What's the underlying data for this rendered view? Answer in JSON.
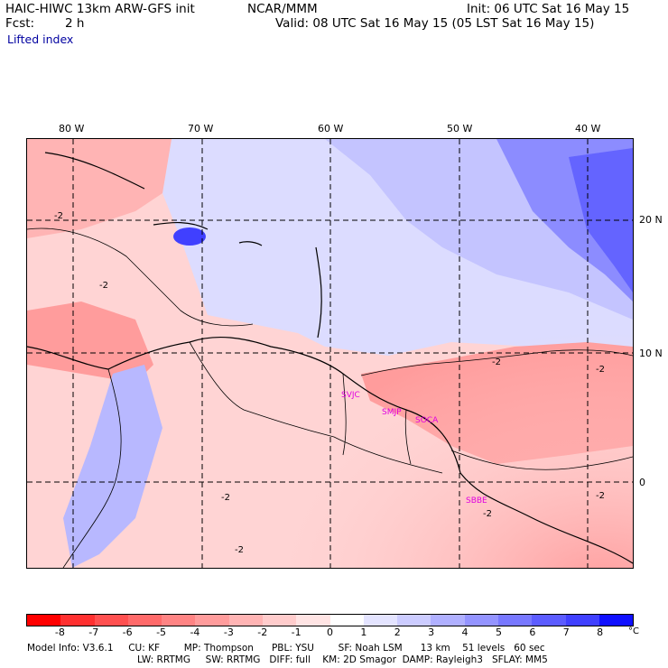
{
  "header": {
    "model": "HAIC-HIWC 13km ARW-GFS init",
    "org": "NCAR/MMM",
    "init": "Init: 06 UTC Sat 16 May 15",
    "fcst_label": "Fcst:",
    "fcst_value": "2 h",
    "valid": "Valid: 08 UTC Sat 16 May 15 (05 LST Sat 16 May 15)",
    "field": "Lifted index"
  },
  "map": {
    "lon_labels": [
      "80 W",
      "70 W",
      "60 W",
      "50 W",
      "40 W"
    ],
    "lat_labels": [
      "20 N",
      "10 N",
      "0"
    ],
    "contour_labels": [
      "-2"
    ],
    "stations": [
      "SVJC",
      "SMJP",
      "SOCA",
      "SBBE"
    ],
    "colors": {
      "negative_strong": "#ff2020",
      "negative_light": "#ffc8c8",
      "positive_light": "#dcdcff",
      "positive_strong": "#2020ff"
    }
  },
  "colorbar": {
    "ticks": [
      "-8",
      "-7",
      "-6",
      "-5",
      "-4",
      "-3",
      "-2",
      "-1",
      "0",
      "1",
      "2",
      "3",
      "4",
      "5",
      "6",
      "7",
      "8"
    ],
    "unit": "°C",
    "colors": [
      "#ff0000",
      "#ff3030",
      "#ff5050",
      "#ff6a6a",
      "#ff8484",
      "#ff9c9c",
      "#ffb4b4",
      "#ffcccc",
      "#ffe4e4",
      "#ffffff",
      "#e4e4ff",
      "#ccccff",
      "#b0b0ff",
      "#9494ff",
      "#7878ff",
      "#5c5cff",
      "#4040ff",
      "#1010ff"
    ]
  },
  "footer": {
    "line1": "Model Info: V3.6.1     CU: KF        MP: Thompson      PBL: YSU        SF: Noah LSM      13 km    51 levels   60 sec",
    "line2": "LW: RRTMG     SW: RRTMG   DIFF: full    KM: 2D Smagor  DAMP: Rayleigh3   SFLAY: MM5"
  }
}
